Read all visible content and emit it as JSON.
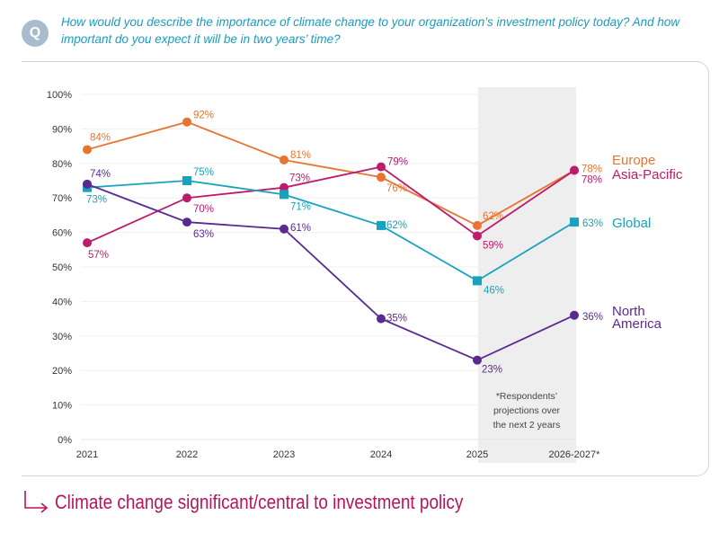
{
  "header": {
    "badge": "Q",
    "question": "How would you describe the importance of climate change to your organization’s investment policy today? And how important do you expect it will be in two years’ time?"
  },
  "footer": {
    "label": "Climate change significant/central to investment policy"
  },
  "colors": {
    "Europe": "#e8742f",
    "Asia-Pacific": "#be1b6a",
    "Global": "#18a2bd",
    "North America": "#5b2a91",
    "question": "#1b9bbf",
    "footer": "#b5155f",
    "projection_band": "#eeeeef"
  },
  "chart_data": {
    "type": "line",
    "title": "",
    "xlabel": "",
    "ylabel": "",
    "categories": [
      "2021",
      "2022",
      "2023",
      "2024",
      "2025",
      "2026-2027*"
    ],
    "y_ticks": [
      "0%",
      "10%",
      "20%",
      "30%",
      "40%",
      "50%",
      "60%",
      "70%",
      "80%",
      "90%",
      "100%"
    ],
    "ylim": [
      0,
      100
    ],
    "grid": true,
    "legend": "right (inline labels at line ends)",
    "projection_note": "*Respondents’ projections over the next 2 years",
    "projection_range": [
      "2025",
      "2026-2027*"
    ],
    "series": [
      {
        "name": "Europe",
        "marker": "circle",
        "values": [
          84,
          92,
          81,
          76,
          62,
          78
        ],
        "labels": [
          "84%",
          "92%",
          "81%",
          "76%",
          "62%",
          "78%"
        ]
      },
      {
        "name": "Asia-Pacific",
        "marker": "circle",
        "values": [
          57,
          70,
          73,
          79,
          59,
          78
        ],
        "labels": [
          "57%",
          "70%",
          "73%",
          "79%",
          "59%",
          "78%"
        ]
      },
      {
        "name": "Global",
        "marker": "square",
        "values": [
          73,
          75,
          71,
          62,
          46,
          63
        ],
        "labels": [
          "73%",
          "75%",
          "71%",
          "62%",
          "46%",
          "63%"
        ]
      },
      {
        "name": "North America",
        "marker": "circle",
        "values": [
          74,
          63,
          61,
          35,
          23,
          36
        ],
        "labels": [
          "74%",
          "63%",
          "61%",
          "35%",
          "23%",
          "36%"
        ]
      }
    ]
  }
}
